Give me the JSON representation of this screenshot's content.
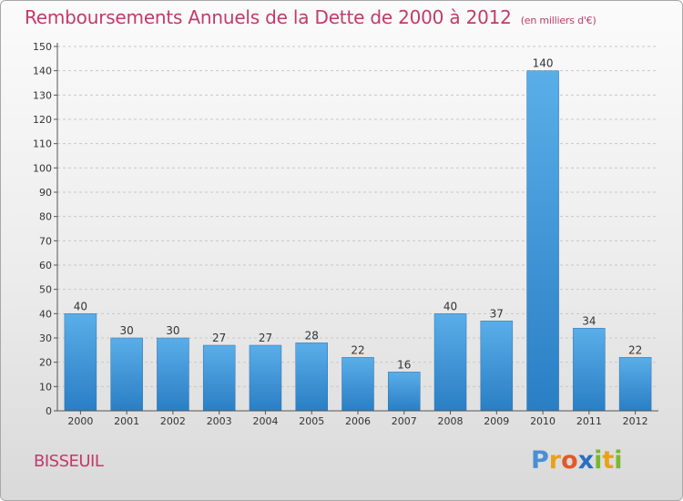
{
  "chart_data": {
    "type": "bar",
    "title": "Remboursements Annuels de la Dette de 2000 à 2012",
    "unit_note": "(en milliers d'€)",
    "categories": [
      "2000",
      "2001",
      "2002",
      "2003",
      "2004",
      "2005",
      "2006",
      "2007",
      "2008",
      "2009",
      "2010",
      "2011",
      "2012"
    ],
    "values": [
      40,
      30,
      30,
      27,
      27,
      28,
      22,
      16,
      40,
      37,
      140,
      34,
      22
    ],
    "ylim": [
      0,
      150
    ],
    "yticks": [
      0,
      10,
      20,
      30,
      40,
      50,
      60,
      70,
      80,
      90,
      100,
      110,
      120,
      130,
      140,
      150
    ],
    "grid": true,
    "bar_color": "#3a8fd6"
  },
  "location": "BISSEUIL",
  "logo": {
    "letters": [
      "P",
      "r",
      "o",
      "x",
      "i",
      "t",
      "i"
    ],
    "colors": [
      "#4a8fd6",
      "#e8a21a",
      "#e05a2a",
      "#2a6fc0",
      "#78b832",
      "#e8a21a",
      "#78b832"
    ]
  }
}
